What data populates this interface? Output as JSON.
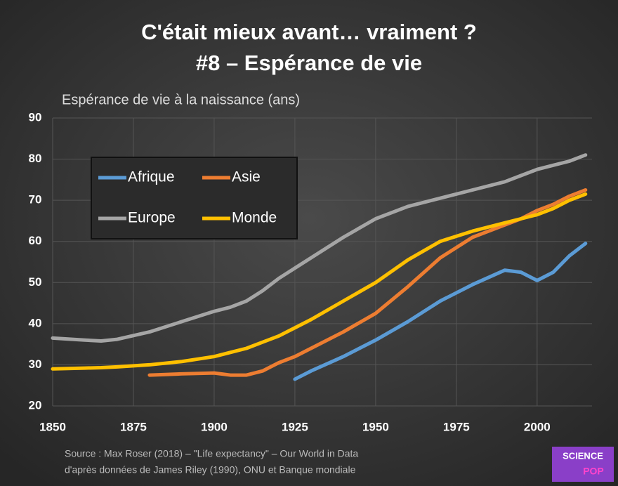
{
  "chart_data": {
    "type": "line",
    "title": "C'était mieux avant… vraiment ?",
    "subtitle": "#8 – Espérance de vie",
    "y_label": "Espérance de vie à la naissance (ans)",
    "source": [
      "Source : Max Roser (2018) – \"Life expectancy\" – Our World in Data",
      "d'après données de James Riley (1990), ONU et Banque mondiale"
    ],
    "logo": [
      "SCIENCE",
      "POP"
    ],
    "x": [
      1850,
      1860,
      1865,
      1870,
      1880,
      1890,
      1900,
      1905,
      1910,
      1915,
      1920,
      1925,
      1930,
      1940,
      1950,
      1960,
      1970,
      1980,
      1990,
      1995,
      2000,
      2005,
      2010,
      2015
    ],
    "series": [
      {
        "name": "Afrique",
        "color": "#5b9bd5",
        "values": [
          null,
          null,
          null,
          null,
          null,
          null,
          null,
          null,
          null,
          null,
          null,
          26.5,
          28.5,
          32,
          36,
          40.5,
          45.5,
          49.5,
          53,
          52.5,
          50.5,
          52.5,
          56.5,
          59.5
        ]
      },
      {
        "name": "Asie",
        "color": "#ed7d31",
        "values": [
          null,
          null,
          null,
          null,
          27.5,
          27.8,
          28,
          27.5,
          27.5,
          28.5,
          30.5,
          32,
          34,
          38,
          42.5,
          49,
          56,
          61,
          64,
          65.5,
          67.5,
          69,
          71,
          72.5
        ]
      },
      {
        "name": "Europe",
        "color": "#a5a5a5",
        "values": [
          36.5,
          36,
          35.8,
          36.2,
          38,
          40.5,
          43,
          44,
          45.5,
          48,
          51,
          53.5,
          56,
          61,
          65.5,
          68.5,
          70.5,
          72.5,
          74.5,
          76,
          77.5,
          78.5,
          79.5,
          81
        ]
      },
      {
        "name": "Monde",
        "color": "#ffc000",
        "values": [
          29,
          29.2,
          29.3,
          29.5,
          30,
          30.8,
          32,
          33,
          34,
          35.5,
          37,
          39,
          41,
          45.5,
          50,
          55.5,
          60,
          62.5,
          64.5,
          65.5,
          66.5,
          68,
          70,
          71.5
        ]
      }
    ],
    "xlim": [
      1850,
      2017
    ],
    "ylim": [
      20,
      90
    ],
    "xticks": [
      1850,
      1875,
      1900,
      1925,
      1950,
      1975,
      2000
    ],
    "yticks": [
      20,
      30,
      40,
      50,
      60,
      70,
      80,
      90
    ],
    "grid": true
  }
}
